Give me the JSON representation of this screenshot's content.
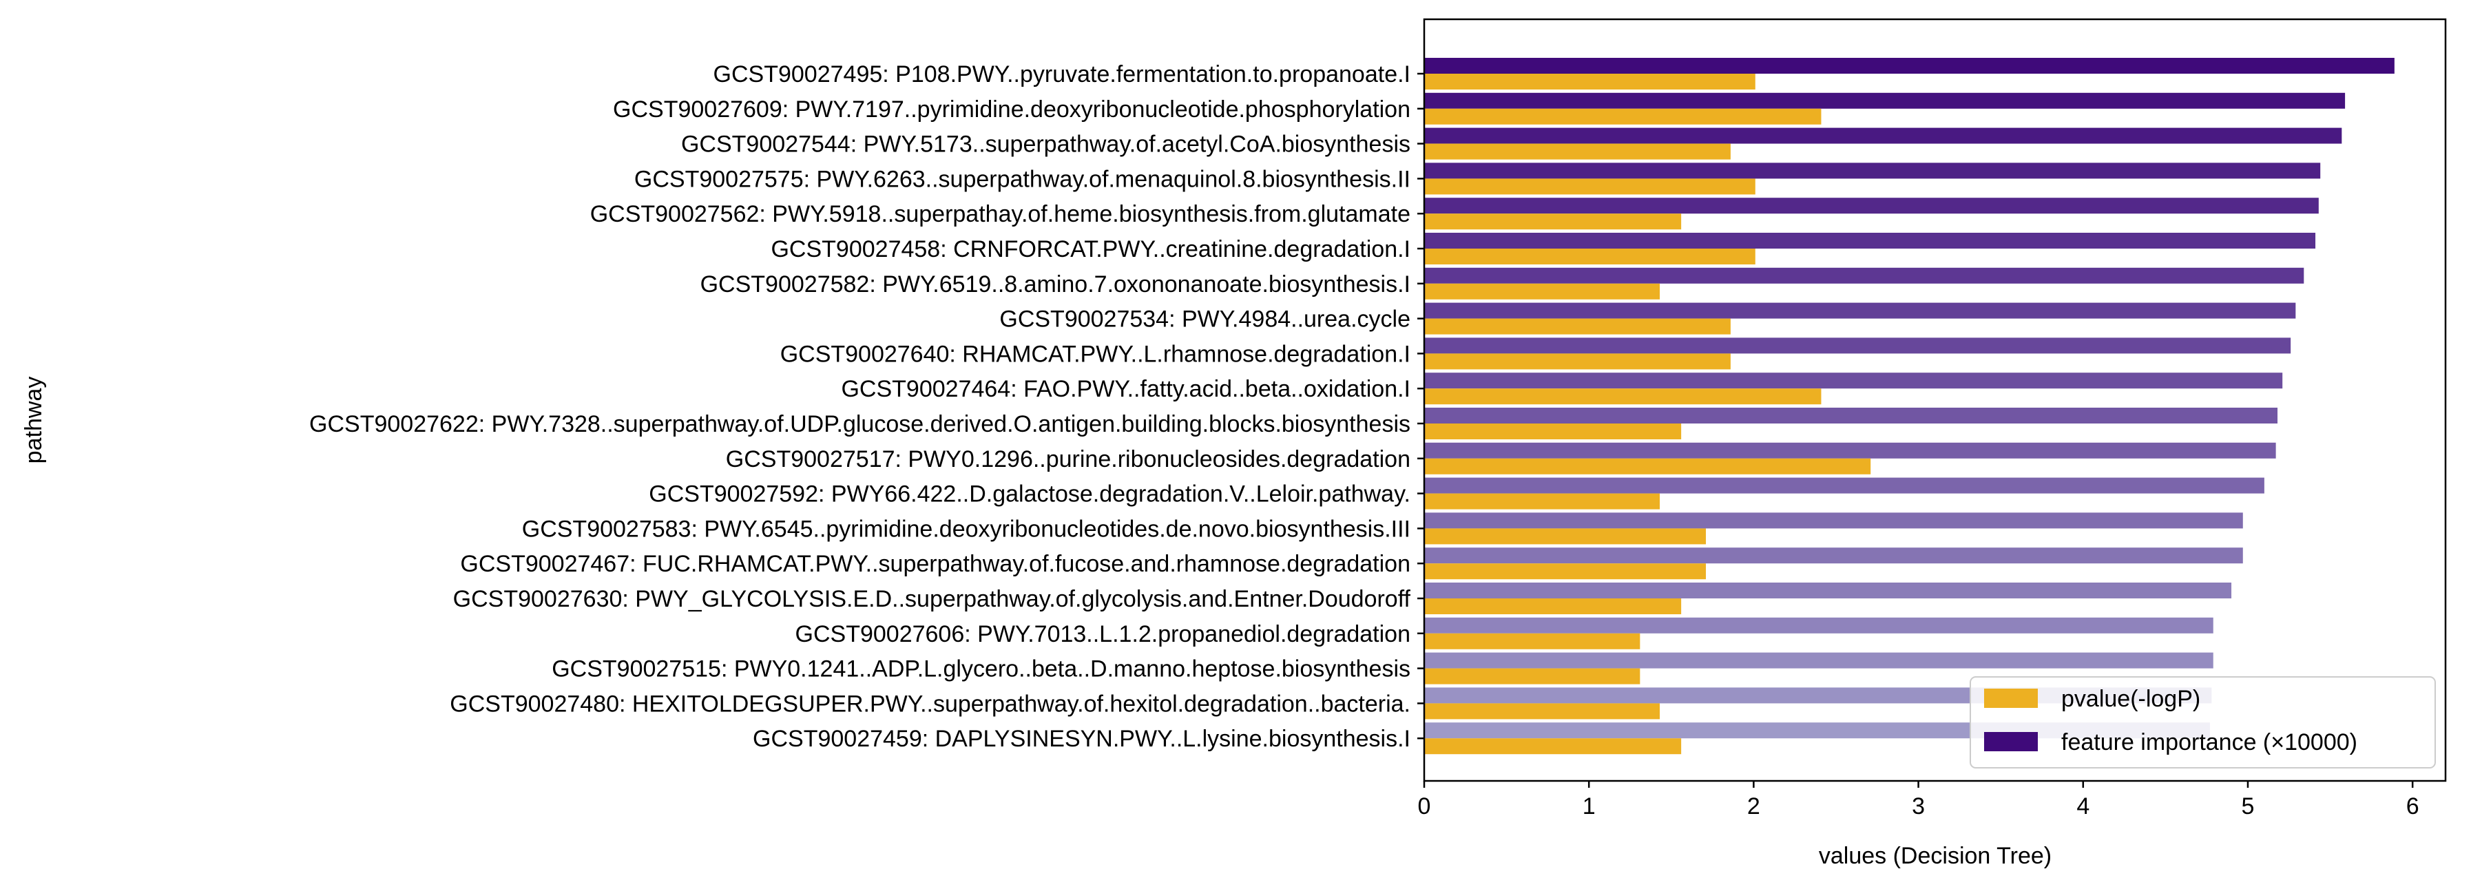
{
  "chart_data": {
    "type": "bar",
    "orientation": "horizontal",
    "xlabel": "values (Decision Tree)",
    "ylabel": "pathway",
    "xlim": [
      0,
      6.2
    ],
    "xticks": [
      0,
      1,
      2,
      3,
      4,
      5,
      6
    ],
    "grid": false,
    "legend_position": "bottom-right",
    "colors": {
      "pvalue": "#EDB022",
      "importance_dark": "#3F0A7A",
      "importance_light": "#9E9AC8"
    },
    "categories": [
      "GCST90027495: P108.PWY..pyruvate.fermentation.to.propanoate.I",
      "GCST90027609: PWY.7197..pyrimidine.deoxyribonucleotide.phosphorylation",
      "GCST90027544: PWY.5173..superpathway.of.acetyl.CoA.biosynthesis",
      "GCST90027575: PWY.6263..superpathway.of.menaquinol.8.biosynthesis.II",
      "GCST90027562: PWY.5918..superpathay.of.heme.biosynthesis.from.glutamate",
      "GCST90027458: CRNFORCAT.PWY..creatinine.degradation.I",
      "GCST90027582: PWY.6519..8.amino.7.oxononanoate.biosynthesis.I",
      "GCST90027534: PWY.4984..urea.cycle",
      "GCST90027640: RHAMCAT.PWY..L.rhamnose.degradation.I",
      "GCST90027464: FAO.PWY..fatty.acid..beta..oxidation.I",
      "GCST90027622: PWY.7328..superpathway.of.UDP.glucose.derived.O.antigen.building.blocks.biosynthesis",
      "GCST90027517: PWY0.1296..purine.ribonucleosides.degradation",
      "GCST90027592: PWY66.422..D.galactose.degradation.V..Leloir.pathway.",
      "GCST90027583: PWY.6545..pyrimidine.deoxyribonucleotides.de.novo.biosynthesis.III",
      "GCST90027467: FUC.RHAMCAT.PWY..superpathway.of.fucose.and.rhamnose.degradation",
      "GCST90027630: PWY_GLYCOLYSIS.E.D..superpathway.of.glycolysis.and.Entner.Doudoroff",
      "GCST90027606: PWY.7013..L.1.2.propanediol.degradation",
      "GCST90027515: PWY0.1241..ADP.L.glycero..beta..D.manno.heptose.biosynthesis",
      "GCST90027480: HEXITOLDEGSUPER.PWY..superpathway.of.hexitol.degradation..bacteria.",
      "GCST90027459: DAPLYSINESYN.PWY..L.lysine.biosynthesis.I"
    ],
    "series": [
      {
        "name": "feature importance (×10000)",
        "values": [
          5.89,
          5.59,
          5.57,
          5.44,
          5.43,
          5.41,
          5.34,
          5.29,
          5.26,
          5.21,
          5.18,
          5.17,
          5.1,
          4.97,
          4.97,
          4.9,
          4.79,
          4.79,
          4.78,
          4.77
        ]
      },
      {
        "name": "pvalue(-logP)",
        "values": [
          2.01,
          2.41,
          1.86,
          2.01,
          1.56,
          2.01,
          1.43,
          1.86,
          1.86,
          2.41,
          1.56,
          2.71,
          1.43,
          1.71,
          1.71,
          1.56,
          1.31,
          1.31,
          1.43,
          1.56
        ]
      }
    ],
    "legend": [
      {
        "label": "pvalue(-logP)",
        "series": 1
      },
      {
        "label": "feature importance (×10000)",
        "series": 0
      }
    ]
  }
}
